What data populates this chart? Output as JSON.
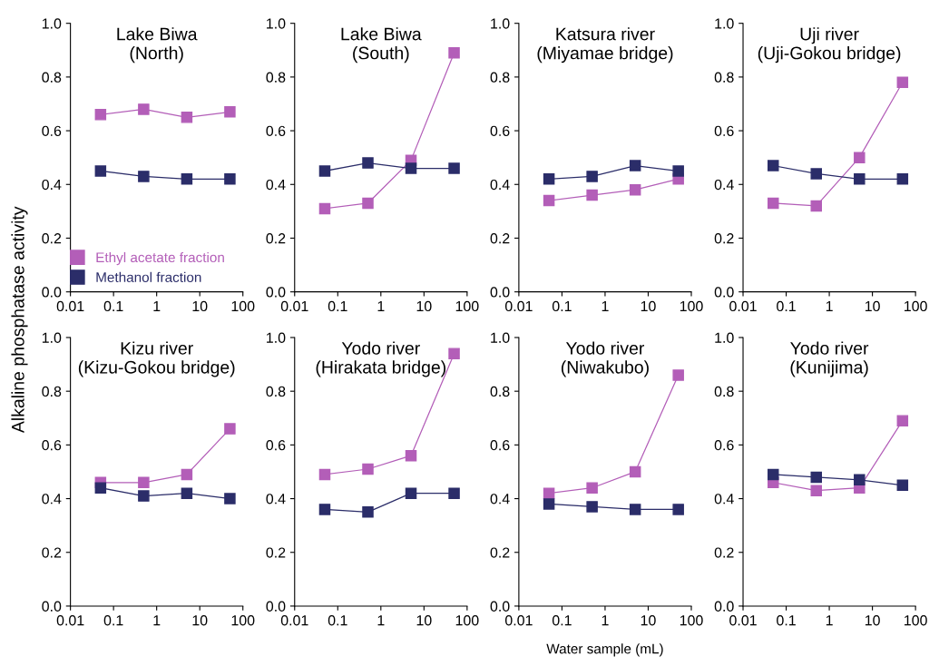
{
  "chart_data": [
    {
      "type": "line",
      "title": "Lake Biwa\n(North)",
      "ylabel": "Alkaline phosphatase activity",
      "x": [
        0.05,
        0.5,
        5,
        50
      ],
      "log": "x",
      "xlim": [
        0.01,
        100
      ],
      "xticks": [
        0.01,
        0.1,
        1,
        10,
        100
      ],
      "ylim": [
        0,
        1
      ],
      "yticks": [
        {
          "value": 0,
          "label": "0.0"
        },
        {
          "value": 0.2,
          "label": "0.2"
        },
        {
          "value": 0.4,
          "label": "0.4"
        },
        {
          "value": 0.6,
          "label": "0.6"
        },
        {
          "value": 0.8,
          "label": "0.8"
        },
        {
          "value": 1,
          "label": "1.0"
        }
      ],
      "marker": "square",
      "line_style": "solid",
      "grid": false,
      "legend": "bottom left",
      "series": [
        {
          "name": "Ethyl acetate fraction",
          "color": "#b35eb8",
          "values": [
            0.66,
            0.68,
            0.65,
            0.67
          ]
        },
        {
          "name": "Methanol fraction",
          "color": "#2b2d69",
          "values": [
            0.45,
            0.43,
            0.42,
            0.42
          ]
        }
      ]
    },
    {
      "type": "line",
      "title": "Lake Biwa\n(South)",
      "x": [
        0.05,
        0.5,
        5,
        50
      ],
      "log": "x",
      "xlim": [
        0.01,
        100
      ],
      "xticks": [
        0.01,
        0.1,
        1,
        10,
        100
      ],
      "ylim": [
        0,
        1
      ],
      "yticks": [
        {
          "value": 0,
          "label": "0.0"
        },
        {
          "value": 0.2,
          "label": "0.2"
        },
        {
          "value": 0.4,
          "label": "0.4"
        },
        {
          "value": 0.6,
          "label": "0.6"
        },
        {
          "value": 0.8,
          "label": "0.8"
        },
        {
          "value": 1,
          "label": "1.0"
        }
      ],
      "marker": "square",
      "line_style": "solid",
      "grid": false,
      "series": [
        {
          "color": "#b35eb8",
          "values": [
            0.31,
            0.33,
            0.49,
            0.89
          ]
        },
        {
          "color": "#2b2d69",
          "values": [
            0.45,
            0.48,
            0.46,
            0.46
          ]
        }
      ]
    },
    {
      "type": "line",
      "title": "Katsura river\n(Miyamae bridge)",
      "x": [
        0.05,
        0.5,
        5,
        50
      ],
      "log": "x",
      "xlim": [
        0.01,
        100
      ],
      "xticks": [
        0.01,
        0.1,
        1,
        10,
        100
      ],
      "ylim": [
        0,
        1
      ],
      "yticks": [
        {
          "value": 0,
          "label": "0.0"
        },
        {
          "value": 0.2,
          "label": "0.2"
        },
        {
          "value": 0.4,
          "label": "0.4"
        },
        {
          "value": 0.6,
          "label": "0.6"
        },
        {
          "value": 0.8,
          "label": "0.8"
        },
        {
          "value": 1,
          "label": "1.0"
        }
      ],
      "marker": "square",
      "line_style": "solid",
      "grid": false,
      "series": [
        {
          "color": "#b35eb8",
          "values": [
            0.34,
            0.36,
            0.38,
            0.42
          ]
        },
        {
          "color": "#2b2d69",
          "values": [
            0.42,
            0.43,
            0.47,
            0.45
          ]
        }
      ]
    },
    {
      "type": "line",
      "title": "Uji river\n(Uji-Gokou bridge)",
      "x": [
        0.05,
        0.5,
        5,
        50
      ],
      "log": "x",
      "xlim": [
        0.01,
        100
      ],
      "xticks": [
        0.01,
        0.1,
        1,
        10,
        100
      ],
      "ylim": [
        0,
        1
      ],
      "yticks": [
        {
          "value": 0,
          "label": "0.0"
        },
        {
          "value": 0.2,
          "label": "0.2"
        },
        {
          "value": 0.4,
          "label": "0.4"
        },
        {
          "value": 0.6,
          "label": "0.6"
        },
        {
          "value": 0.8,
          "label": "0.8"
        },
        {
          "value": 1,
          "label": "1.0"
        }
      ],
      "marker": "square",
      "line_style": "solid",
      "grid": false,
      "series": [
        {
          "color": "#b35eb8",
          "values": [
            0.33,
            0.32,
            0.5,
            0.78
          ]
        },
        {
          "color": "#2b2d69",
          "values": [
            0.47,
            0.44,
            0.42,
            0.42
          ]
        }
      ]
    },
    {
      "type": "line",
      "title": "Kizu river\n(Kizu-Gokou bridge)",
      "x": [
        0.05,
        0.5,
        5,
        50
      ],
      "log": "x",
      "xlim": [
        0.01,
        100
      ],
      "xticks": [
        0.01,
        0.1,
        1,
        10,
        100
      ],
      "ylim": [
        0,
        1
      ],
      "yticks": [
        {
          "value": 0,
          "label": "0.0"
        },
        {
          "value": 0.2,
          "label": "0.2"
        },
        {
          "value": 0.4,
          "label": "0.4"
        },
        {
          "value": 0.6,
          "label": "0.6"
        },
        {
          "value": 0.8,
          "label": "0.8"
        },
        {
          "value": 1,
          "label": "1.0"
        }
      ],
      "marker": "square",
      "line_style": "solid",
      "grid": false,
      "series": [
        {
          "color": "#b35eb8",
          "values": [
            0.46,
            0.46,
            0.49,
            0.66
          ]
        },
        {
          "color": "#2b2d69",
          "values": [
            0.44,
            0.41,
            0.42,
            0.4
          ]
        }
      ]
    },
    {
      "type": "line",
      "title": "Yodo river\n(Hirakata bridge)",
      "x": [
        0.05,
        0.5,
        5,
        50
      ],
      "log": "x",
      "xlim": [
        0.01,
        100
      ],
      "xticks": [
        0.01,
        0.1,
        1,
        10,
        100
      ],
      "ylim": [
        0,
        1
      ],
      "yticks": [
        {
          "value": 0,
          "label": "0.0"
        },
        {
          "value": 0.2,
          "label": "0.2"
        },
        {
          "value": 0.4,
          "label": "0.4"
        },
        {
          "value": 0.6,
          "label": "0.6"
        },
        {
          "value": 0.8,
          "label": "0.8"
        },
        {
          "value": 1,
          "label": "1.0"
        }
      ],
      "marker": "square",
      "line_style": "solid",
      "grid": false,
      "series": [
        {
          "color": "#b35eb8",
          "values": [
            0.49,
            0.51,
            0.56,
            0.94
          ]
        },
        {
          "color": "#2b2d69",
          "values": [
            0.36,
            0.35,
            0.42,
            0.42
          ]
        }
      ]
    },
    {
      "type": "line",
      "title": "Yodo river\n(Niwakubo)",
      "xlabel": "Water sample (mL)",
      "x": [
        0.05,
        0.5,
        5,
        50
      ],
      "log": "x",
      "xlim": [
        0.01,
        100
      ],
      "xticks": [
        0.01,
        0.1,
        1,
        10,
        100
      ],
      "ylim": [
        0,
        1
      ],
      "yticks": [
        {
          "value": 0,
          "label": "0.0"
        },
        {
          "value": 0.2,
          "label": "0.2"
        },
        {
          "value": 0.4,
          "label": "0.4"
        },
        {
          "value": 0.6,
          "label": "0.6"
        },
        {
          "value": 0.8,
          "label": "0.8"
        },
        {
          "value": 1,
          "label": "1.0"
        }
      ],
      "marker": "square",
      "line_style": "solid",
      "grid": false,
      "series": [
        {
          "color": "#b35eb8",
          "values": [
            0.42,
            0.44,
            0.5,
            0.86
          ]
        },
        {
          "color": "#2b2d69",
          "values": [
            0.38,
            0.37,
            0.36,
            0.36
          ]
        }
      ]
    },
    {
      "type": "line",
      "title": "Yodo river\n(Kunijima)",
      "x": [
        0.05,
        0.5,
        5,
        50
      ],
      "log": "x",
      "xlim": [
        0.01,
        100
      ],
      "xticks": [
        0.01,
        0.1,
        1,
        10,
        100
      ],
      "ylim": [
        0,
        1
      ],
      "yticks": [
        {
          "value": 0,
          "label": "0.0"
        },
        {
          "value": 0.2,
          "label": "0.2"
        },
        {
          "value": 0.4,
          "label": "0.4"
        },
        {
          "value": 0.6,
          "label": "0.6"
        },
        {
          "value": 0.8,
          "label": "0.8"
        },
        {
          "value": 1,
          "label": "1.0"
        }
      ],
      "marker": "square",
      "line_style": "solid",
      "grid": false,
      "series": [
        {
          "color": "#b35eb8",
          "values": [
            0.46,
            0.43,
            0.44,
            0.69
          ]
        },
        {
          "color": "#2b2d69",
          "values": [
            0.49,
            0.48,
            0.47,
            0.45
          ]
        }
      ]
    }
  ]
}
